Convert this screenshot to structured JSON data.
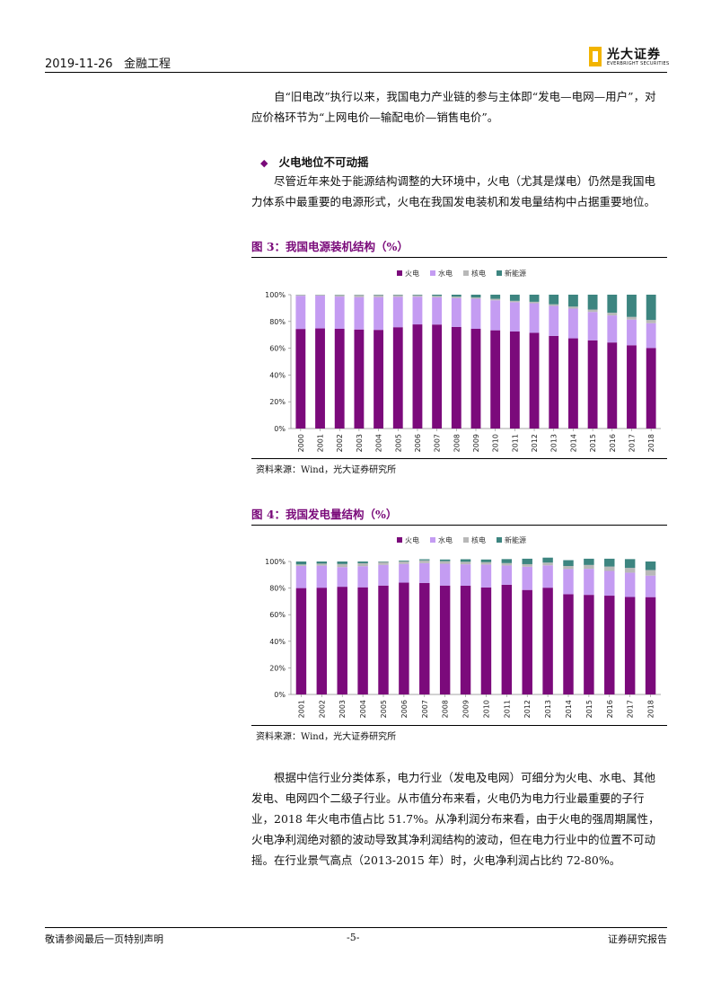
{
  "header": {
    "date": "2019-11-26",
    "section": "金融工程",
    "logo_name": "光大证券",
    "logo_en": "EVERBRIGHT SECURITIES"
  },
  "body": {
    "p1": "　　自“旧电改”执行以来，我国电力产业链的参与主体即“发电—电网—用户”，对应价格环节为“上网电价—输配电价—销售电价”。",
    "section_heading": "火电地位不可动摇",
    "p2": "　　尽管近年来处于能源结构调整的大环境中，火电（尤其是煤电）仍然是我国电力体系中最重要的电源形式，火电在我国发电装机和发电量结构中占据重要地位。",
    "p3": "　　根据中信行业分类体系，电力行业（发电及电网）可细分为火电、水电、其他发电、电网四个二级子行业。从市值分布来看，火电仍为电力行业最重要的子行业，2018 年火电市值占比 51.7%。从净利润分布来看，由于火电的强周期属性，火电净利润绝对额的波动导致其净利润结构的波动，但在电力行业中的位置不可动摇。在行业景气高点（2013-2015 年）时，火电净利润占比约 72-80%。"
  },
  "figures": {
    "fig3_title": "图 3：我国电源装机结构（%）",
    "fig3_source": "资料来源：Wind，光大证券研究所",
    "fig4_title": "图 4：我国发电量结构（%）",
    "fig4_source": "资料来源：Wind，光大证券研究所"
  },
  "footer": {
    "disclaimer": "敬请参阅最后一页特别声明",
    "page": "-5-",
    "type": "证券研究报告"
  },
  "chart_data": [
    {
      "type": "bar",
      "stacked": true,
      "categories": [
        "2000",
        "2001",
        "2002",
        "2003",
        "2004",
        "2005",
        "2006",
        "2007",
        "2008",
        "2009",
        "2010",
        "2011",
        "2012",
        "2013",
        "2014",
        "2015",
        "2016",
        "2017",
        "2018"
      ],
      "series": [
        {
          "name": "火电",
          "color": "#7b0a7b",
          "values": [
            74.4,
            74.8,
            74.5,
            74.0,
            73.7,
            75.7,
            77.8,
            77.7,
            75.9,
            74.5,
            73.4,
            72.5,
            71.5,
            69.2,
            67.4,
            65.9,
            64.3,
            62.2,
            60.2
          ]
        },
        {
          "name": "水电",
          "color": "#c49cf2",
          "values": [
            24.8,
            24.5,
            24.1,
            24.2,
            24.5,
            22.7,
            20.7,
            20.4,
            21.6,
            22.5,
            22.4,
            21.9,
            22.1,
            22.4,
            22.2,
            21.2,
            20.2,
            19.2,
            18.5
          ]
        },
        {
          "name": "核电",
          "color": "#b8b8b8",
          "values": [
            0.7,
            0.6,
            1.2,
            1.6,
            1.5,
            1.3,
            1.1,
            1.0,
            1.0,
            0.9,
            1.1,
            1.0,
            1.1,
            1.2,
            1.5,
            1.8,
            2.0,
            2.0,
            2.4
          ]
        },
        {
          "name": "新能源",
          "color": "#3d8580",
          "values": [
            0.1,
            0.1,
            0.2,
            0.2,
            0.3,
            0.3,
            0.4,
            0.9,
            1.5,
            2.1,
            3.1,
            4.6,
            5.3,
            7.2,
            8.9,
            11.1,
            13.5,
            16.6,
            18.9
          ]
        }
      ],
      "ylim": [
        0,
        100
      ],
      "yticks": [
        "0%",
        "20%",
        "40%",
        "60%",
        "80%",
        "100%"
      ],
      "legend": "top"
    },
    {
      "type": "bar",
      "stacked": true,
      "categories": [
        "2001",
        "2002",
        "2003",
        "2004",
        "2005",
        "2006",
        "2007",
        "2008",
        "2009",
        "2010",
        "2011",
        "2012",
        "2013",
        "2014",
        "2015",
        "2016",
        "2017",
        "2018"
      ],
      "series": [
        {
          "name": "火电",
          "color": "#7b0a7b",
          "values": [
            80.0,
            80.3,
            81.0,
            80.6,
            81.9,
            84.1,
            83.9,
            81.9,
            81.8,
            80.5,
            82.5,
            78.6,
            80.3,
            75.4,
            74.9,
            74.3,
            73.3,
            73.2
          ]
        },
        {
          "name": "水电",
          "color": "#c49cf2",
          "values": [
            16.7,
            16.6,
            14.8,
            15.9,
            15.6,
            14.1,
            14.9,
            16.4,
            16.1,
            17.2,
            14.5,
            17.5,
            16.8,
            18.9,
            19.6,
            18.6,
            18.3,
            16.2
          ]
        },
        {
          "name": "核电",
          "color": "#b8b8b8",
          "values": [
            1.1,
            1.5,
            2.3,
            2.2,
            2.1,
            1.9,
            2.1,
            2.0,
            1.9,
            1.8,
            1.8,
            1.9,
            2.1,
            2.3,
            2.9,
            3.3,
            3.6,
            4.2
          ]
        },
        {
          "name": "新能源",
          "color": "#3d8580",
          "values": [
            2.2,
            1.6,
            1.9,
            1.3,
            0.4,
            0.6,
            0.8,
            1.2,
            1.9,
            2.0,
            3.0,
            4.1,
            3.7,
            4.4,
            4.7,
            5.9,
            6.6,
            6.4
          ]
        }
      ],
      "ylim": [
        0,
        100
      ],
      "yticks": [
        "0%",
        "20%",
        "40%",
        "60%",
        "80%",
        "100%"
      ],
      "legend": "top"
    }
  ]
}
